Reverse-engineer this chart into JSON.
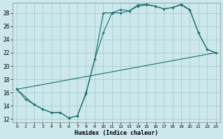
{
  "xlabel": "Humidex (Indice chaleur)",
  "bg_color": "#cce8ec",
  "grid_color": "#a0c8cc",
  "line_color": "#1a6e6e",
  "xlim": [
    -0.5,
    23.5
  ],
  "ylim": [
    11.5,
    29.5
  ],
  "xticks": [
    0,
    1,
    2,
    3,
    4,
    5,
    6,
    7,
    8,
    9,
    10,
    11,
    12,
    13,
    14,
    15,
    16,
    17,
    18,
    19,
    20,
    21,
    22,
    23
  ],
  "yticks": [
    12,
    14,
    16,
    18,
    20,
    22,
    24,
    26,
    28
  ],
  "line1_x": [
    0,
    1,
    2,
    3,
    4,
    5,
    6,
    7,
    8,
    9,
    10,
    11,
    12,
    13,
    14,
    15,
    16,
    17,
    18,
    19,
    20,
    21,
    22,
    23
  ],
  "line1_y": [
    16.5,
    15.0,
    14.2,
    13.5,
    13.0,
    13.0,
    12.2,
    12.5,
    15.8,
    21.0,
    28.0,
    28.0,
    28.5,
    28.3,
    29.2,
    29.3,
    29.0,
    28.6,
    28.8,
    29.3,
    28.5,
    25.0,
    22.5,
    22.0
  ],
  "line2_x": [
    0,
    2,
    3,
    4,
    5,
    6,
    7,
    8,
    9,
    10,
    11,
    12,
    13,
    14,
    15,
    16,
    17,
    18,
    19,
    20,
    21,
    22,
    23
  ],
  "line2_y": [
    16.5,
    14.2,
    13.5,
    13.0,
    13.0,
    12.2,
    12.5,
    16.0,
    21.0,
    25.0,
    28.0,
    28.0,
    28.3,
    29.0,
    29.2,
    29.0,
    28.6,
    28.8,
    29.2,
    28.4,
    25.0,
    22.5,
    22.0
  ],
  "line3_x": [
    0,
    23
  ],
  "line3_y": [
    16.5,
    22.0
  ]
}
